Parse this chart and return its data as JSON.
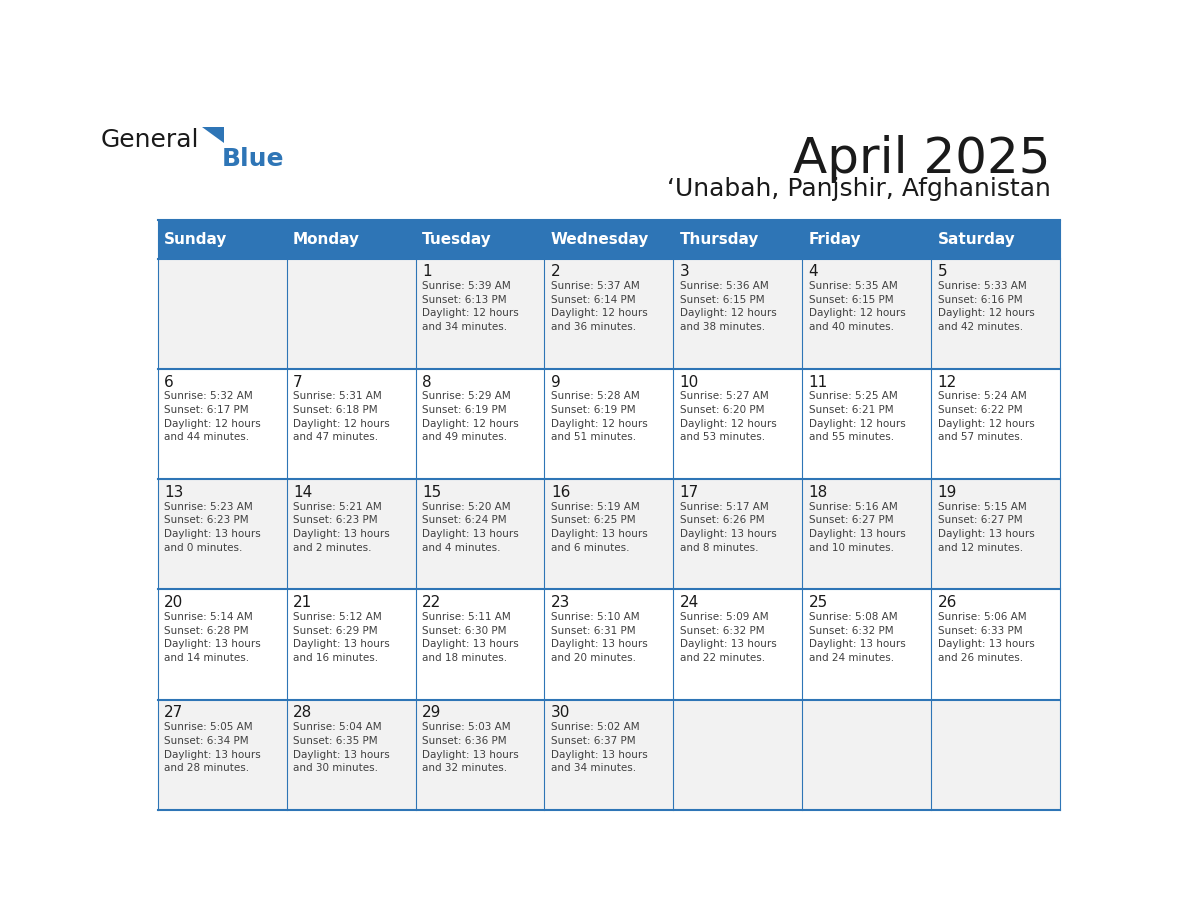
{
  "title": "April 2025",
  "subtitle": "‘Unabah, Panjshir, Afghanistan",
  "header_bg": "#2E75B6",
  "header_text_color": "#FFFFFF",
  "cell_bg_odd": "#F2F2F2",
  "cell_bg_even": "#FFFFFF",
  "grid_line_color": "#2E75B6",
  "days_of_week": [
    "Sunday",
    "Monday",
    "Tuesday",
    "Wednesday",
    "Thursday",
    "Friday",
    "Saturday"
  ],
  "weeks": [
    [
      {
        "day": "",
        "text": ""
      },
      {
        "day": "",
        "text": ""
      },
      {
        "day": "1",
        "text": "Sunrise: 5:39 AM\nSunset: 6:13 PM\nDaylight: 12 hours\nand 34 minutes."
      },
      {
        "day": "2",
        "text": "Sunrise: 5:37 AM\nSunset: 6:14 PM\nDaylight: 12 hours\nand 36 minutes."
      },
      {
        "day": "3",
        "text": "Sunrise: 5:36 AM\nSunset: 6:15 PM\nDaylight: 12 hours\nand 38 minutes."
      },
      {
        "day": "4",
        "text": "Sunrise: 5:35 AM\nSunset: 6:15 PM\nDaylight: 12 hours\nand 40 minutes."
      },
      {
        "day": "5",
        "text": "Sunrise: 5:33 AM\nSunset: 6:16 PM\nDaylight: 12 hours\nand 42 minutes."
      }
    ],
    [
      {
        "day": "6",
        "text": "Sunrise: 5:32 AM\nSunset: 6:17 PM\nDaylight: 12 hours\nand 44 minutes."
      },
      {
        "day": "7",
        "text": "Sunrise: 5:31 AM\nSunset: 6:18 PM\nDaylight: 12 hours\nand 47 minutes."
      },
      {
        "day": "8",
        "text": "Sunrise: 5:29 AM\nSunset: 6:19 PM\nDaylight: 12 hours\nand 49 minutes."
      },
      {
        "day": "9",
        "text": "Sunrise: 5:28 AM\nSunset: 6:19 PM\nDaylight: 12 hours\nand 51 minutes."
      },
      {
        "day": "10",
        "text": "Sunrise: 5:27 AM\nSunset: 6:20 PM\nDaylight: 12 hours\nand 53 minutes."
      },
      {
        "day": "11",
        "text": "Sunrise: 5:25 AM\nSunset: 6:21 PM\nDaylight: 12 hours\nand 55 minutes."
      },
      {
        "day": "12",
        "text": "Sunrise: 5:24 AM\nSunset: 6:22 PM\nDaylight: 12 hours\nand 57 minutes."
      }
    ],
    [
      {
        "day": "13",
        "text": "Sunrise: 5:23 AM\nSunset: 6:23 PM\nDaylight: 13 hours\nand 0 minutes."
      },
      {
        "day": "14",
        "text": "Sunrise: 5:21 AM\nSunset: 6:23 PM\nDaylight: 13 hours\nand 2 minutes."
      },
      {
        "day": "15",
        "text": "Sunrise: 5:20 AM\nSunset: 6:24 PM\nDaylight: 13 hours\nand 4 minutes."
      },
      {
        "day": "16",
        "text": "Sunrise: 5:19 AM\nSunset: 6:25 PM\nDaylight: 13 hours\nand 6 minutes."
      },
      {
        "day": "17",
        "text": "Sunrise: 5:17 AM\nSunset: 6:26 PM\nDaylight: 13 hours\nand 8 minutes."
      },
      {
        "day": "18",
        "text": "Sunrise: 5:16 AM\nSunset: 6:27 PM\nDaylight: 13 hours\nand 10 minutes."
      },
      {
        "day": "19",
        "text": "Sunrise: 5:15 AM\nSunset: 6:27 PM\nDaylight: 13 hours\nand 12 minutes."
      }
    ],
    [
      {
        "day": "20",
        "text": "Sunrise: 5:14 AM\nSunset: 6:28 PM\nDaylight: 13 hours\nand 14 minutes."
      },
      {
        "day": "21",
        "text": "Sunrise: 5:12 AM\nSunset: 6:29 PM\nDaylight: 13 hours\nand 16 minutes."
      },
      {
        "day": "22",
        "text": "Sunrise: 5:11 AM\nSunset: 6:30 PM\nDaylight: 13 hours\nand 18 minutes."
      },
      {
        "day": "23",
        "text": "Sunrise: 5:10 AM\nSunset: 6:31 PM\nDaylight: 13 hours\nand 20 minutes."
      },
      {
        "day": "24",
        "text": "Sunrise: 5:09 AM\nSunset: 6:32 PM\nDaylight: 13 hours\nand 22 minutes."
      },
      {
        "day": "25",
        "text": "Sunrise: 5:08 AM\nSunset: 6:32 PM\nDaylight: 13 hours\nand 24 minutes."
      },
      {
        "day": "26",
        "text": "Sunrise: 5:06 AM\nSunset: 6:33 PM\nDaylight: 13 hours\nand 26 minutes."
      }
    ],
    [
      {
        "day": "27",
        "text": "Sunrise: 5:05 AM\nSunset: 6:34 PM\nDaylight: 13 hours\nand 28 minutes."
      },
      {
        "day": "28",
        "text": "Sunrise: 5:04 AM\nSunset: 6:35 PM\nDaylight: 13 hours\nand 30 minutes."
      },
      {
        "day": "29",
        "text": "Sunrise: 5:03 AM\nSunset: 6:36 PM\nDaylight: 13 hours\nand 32 minutes."
      },
      {
        "day": "30",
        "text": "Sunrise: 5:02 AM\nSunset: 6:37 PM\nDaylight: 13 hours\nand 34 minutes."
      },
      {
        "day": "",
        "text": ""
      },
      {
        "day": "",
        "text": ""
      },
      {
        "day": "",
        "text": ""
      }
    ]
  ]
}
